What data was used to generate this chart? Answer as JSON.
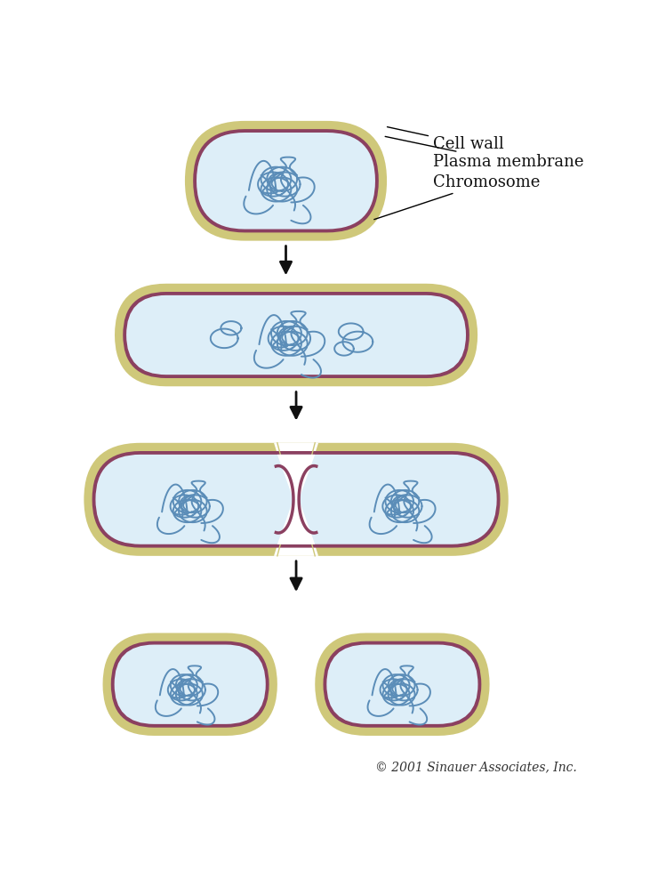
{
  "bg_color": "#ffffff",
  "cell_wall_color": "#cfc87a",
  "plasma_membrane_color": "#8b4060",
  "cytoplasm_color": "#ddeef8",
  "chromosome_color": "#5b8db8",
  "arrow_color": "#111111",
  "label_color": "#111111",
  "copyright_text": "© 2001 Sinauer Associates, Inc.",
  "labels": [
    "Cell wall",
    "Plasma membrane",
    "Chromosome"
  ],
  "label_fontsize": 13,
  "copyright_fontsize": 10,
  "cell_wall_thickness": 12,
  "plasma_membrane_thickness": 5
}
